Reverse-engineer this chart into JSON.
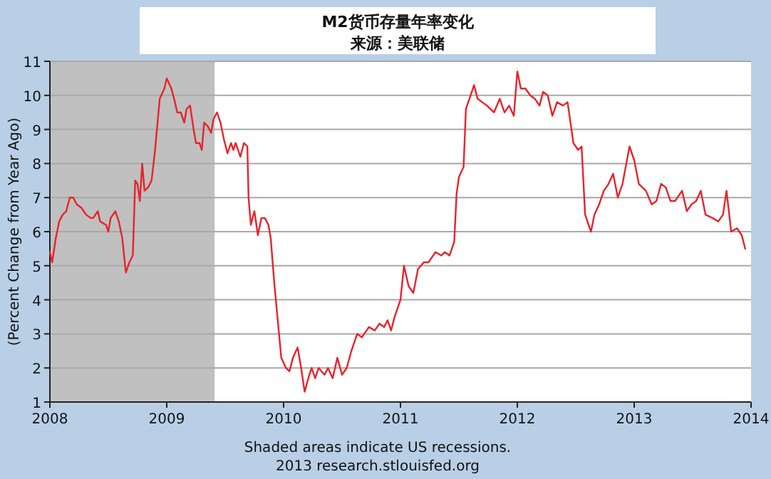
{
  "chart_data": {
    "type": "line",
    "title": "M2货币存量年率变化",
    "subtitle": "来源：美联储",
    "ylabel": "(Percent Change from Year Ago)",
    "annotations": [
      "Shaded areas indicate US recessions.",
      "2013 research.stlouisfed.org"
    ],
    "xlim": [
      2008,
      2014
    ],
    "xticks": [
      2008,
      2009,
      2010,
      2011,
      2012,
      2013,
      2014
    ],
    "ylim": [
      1,
      11
    ],
    "yticks": [
      1,
      2,
      3,
      4,
      5,
      6,
      7,
      8,
      9,
      10,
      11
    ],
    "grid": "y",
    "marker": "none",
    "line_style": "solid",
    "bands": [
      {
        "axis": "x",
        "from": 2008,
        "to": 2009.41,
        "color": "#c0c0c0"
      }
    ],
    "series": [
      {
        "color": "#e8232b",
        "x": [
          2008.0,
          2008.02,
          2008.05,
          2008.08,
          2008.11,
          2008.14,
          2008.17,
          2008.2,
          2008.23,
          2008.27,
          2008.31,
          2008.35,
          2008.37,
          2008.41,
          2008.43,
          2008.48,
          2008.5,
          2008.52,
          2008.56,
          2008.59,
          2008.62,
          2008.65,
          2008.68,
          2008.71,
          2008.73,
          2008.75,
          2008.77,
          2008.79,
          2008.81,
          2008.84,
          2008.87,
          2008.9,
          2008.94,
          2008.98,
          2009.0,
          2009.04,
          2009.07,
          2009.09,
          2009.12,
          2009.15,
          2009.17,
          2009.2,
          2009.23,
          2009.25,
          2009.28,
          2009.3,
          2009.32,
          2009.35,
          2009.38,
          2009.4,
          2009.43,
          2009.46,
          2009.49,
          2009.52,
          2009.55,
          2009.57,
          2009.59,
          2009.63,
          2009.66,
          2009.69,
          2009.7,
          2009.72,
          2009.75,
          2009.78,
          2009.81,
          2009.84,
          2009.87,
          2009.89,
          2009.92,
          2009.95,
          2009.98,
          2010.02,
          2010.05,
          2010.08,
          2010.12,
          2010.15,
          2010.18,
          2010.22,
          2010.24,
          2010.27,
          2010.3,
          2010.35,
          2010.38,
          2010.42,
          2010.46,
          2010.5,
          2010.54,
          2010.58,
          2010.63,
          2010.67,
          2010.73,
          2010.78,
          2010.82,
          2010.86,
          2010.89,
          2010.92,
          2010.95,
          2011.0,
          2011.03,
          2011.07,
          2011.11,
          2011.15,
          2011.2,
          2011.24,
          2011.3,
          2011.35,
          2011.38,
          2011.42,
          2011.46,
          2011.48,
          2011.5,
          2011.54,
          2011.56,
          2011.6,
          2011.63,
          2011.66,
          2011.7,
          2011.74,
          2011.8,
          2011.85,
          2011.89,
          2011.93,
          2011.97,
          2012.0,
          2012.03,
          2012.07,
          2012.11,
          2012.15,
          2012.19,
          2012.22,
          2012.26,
          2012.3,
          2012.34,
          2012.39,
          2012.43,
          2012.48,
          2012.52,
          2012.55,
          2012.58,
          2012.63,
          2012.66,
          2012.7,
          2012.74,
          2012.78,
          2012.82,
          2012.86,
          2012.9,
          2012.96,
          2013.0,
          2013.04,
          2013.1,
          2013.15,
          2013.19,
          2013.23,
          2013.27,
          2013.31,
          2013.35,
          2013.41,
          2013.45,
          2013.49,
          2013.53,
          2013.57,
          2013.61,
          2013.67,
          2013.72,
          2013.76,
          2013.79,
          2013.83,
          2013.88,
          2013.92,
          2013.95
        ],
        "values": [
          5.4,
          5.1,
          5.8,
          6.3,
          6.5,
          6.6,
          7.0,
          7.0,
          6.8,
          6.7,
          6.5,
          6.4,
          6.4,
          6.6,
          6.3,
          6.2,
          6.0,
          6.4,
          6.6,
          6.3,
          5.8,
          4.8,
          5.1,
          5.3,
          7.5,
          7.4,
          6.9,
          8.0,
          7.2,
          7.3,
          7.5,
          8.4,
          9.9,
          10.2,
          10.5,
          10.2,
          9.8,
          9.5,
          9.5,
          9.2,
          9.6,
          9.7,
          9.0,
          8.6,
          8.6,
          8.4,
          9.2,
          9.1,
          8.9,
          9.3,
          9.5,
          9.2,
          8.7,
          8.3,
          8.6,
          8.4,
          8.6,
          8.2,
          8.6,
          8.5,
          7.0,
          6.2,
          6.6,
          5.9,
          6.4,
          6.4,
          6.2,
          5.8,
          4.5,
          3.4,
          2.3,
          2.0,
          1.9,
          2.3,
          2.6,
          2.0,
          1.3,
          1.8,
          2.0,
          1.7,
          2.0,
          1.8,
          2.0,
          1.7,
          2.3,
          1.8,
          2.0,
          2.5,
          3.0,
          2.9,
          3.2,
          3.1,
          3.3,
          3.2,
          3.4,
          3.1,
          3.5,
          4.0,
          5.0,
          4.4,
          4.2,
          4.9,
          5.1,
          5.1,
          5.4,
          5.3,
          5.4,
          5.3,
          5.7,
          7.1,
          7.6,
          7.9,
          9.6,
          10.0,
          10.3,
          9.9,
          9.8,
          9.7,
          9.5,
          9.9,
          9.5,
          9.7,
          9.4,
          10.7,
          10.2,
          10.2,
          10.0,
          9.9,
          9.7,
          10.1,
          10.0,
          9.4,
          9.8,
          9.7,
          9.8,
          8.6,
          8.4,
          8.5,
          6.5,
          6.0,
          6.5,
          6.8,
          7.2,
          7.4,
          7.7,
          7.0,
          7.4,
          8.5,
          8.1,
          7.4,
          7.2,
          6.8,
          6.9,
          7.4,
          7.3,
          6.9,
          6.9,
          7.2,
          6.6,
          6.8,
          6.9,
          7.2,
          6.5,
          6.4,
          6.3,
          6.5,
          7.2,
          6.0,
          6.1,
          5.9,
          5.5
        ]
      }
    ]
  }
}
